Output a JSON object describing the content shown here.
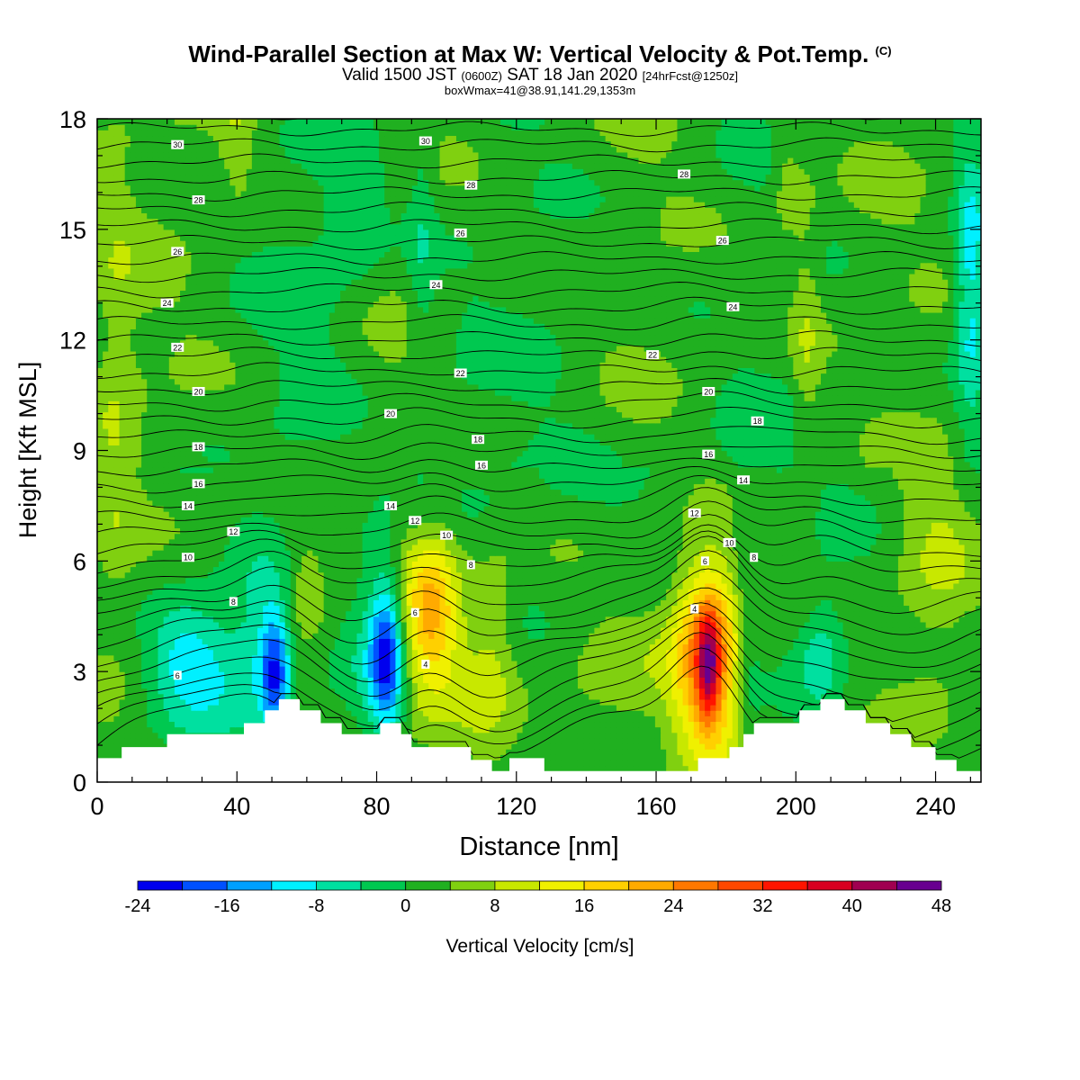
{
  "title": {
    "main": "Wind-Parallel Section at Max W: Vertical Velocity & Pot.Temp.",
    "copyright": "(C)",
    "valid_prefix": "Valid 1500 JST",
    "valid_utc": "(0600Z)",
    "valid_date": "SAT 18 Jan 2020",
    "forecast": "[24hrFcst@1250z]",
    "box_info": "boxWmax=41@38.91,141.29,1353m"
  },
  "chart_data": {
    "type": "heatmap",
    "xlabel": "Distance [nm]",
    "ylabel": "Height [Kft MSL]",
    "xlim": [
      0,
      253
    ],
    "ylim": [
      0,
      18
    ],
    "x_ticks": [
      0,
      40,
      80,
      120,
      160,
      200,
      240
    ],
    "y_ticks": [
      0,
      3,
      6,
      9,
      12,
      15,
      18
    ],
    "colorbar": {
      "label": "Vertical Velocity [cm/s]",
      "ticks": [
        -24,
        -16,
        -8,
        0,
        8,
        16,
        24,
        32,
        40,
        48
      ],
      "levels": [
        -24,
        -20,
        -16,
        -12,
        -8,
        -4,
        0,
        4,
        8,
        12,
        16,
        20,
        24,
        28,
        32,
        36,
        40,
        44,
        48
      ],
      "colors": [
        "#0000ee",
        "#0050ff",
        "#00a0ff",
        "#00f0ff",
        "#00e0a0",
        "#00c850",
        "#20b020",
        "#80d010",
        "#c8e800",
        "#f0f000",
        "#ffd000",
        "#ffaa00",
        "#ff7800",
        "#ff4800",
        "#ff1400",
        "#d80020",
        "#a00050",
        "#680090"
      ]
    },
    "background_velocity": 2,
    "velocity_features": [
      {
        "x": 95,
        "y": 4.5,
        "sx": 7,
        "sy": 2.0,
        "w": 14
      },
      {
        "x": 96,
        "y": 4.8,
        "sx": 4,
        "sy": 1.2,
        "w": 5
      },
      {
        "x": 83,
        "y": 3.5,
        "sx": 3.5,
        "sy": 1.5,
        "w": -24
      },
      {
        "x": 77,
        "y": 4.0,
        "sx": 5,
        "sy": 2.0,
        "w": -4
      },
      {
        "x": 51,
        "y": 3.0,
        "sx": 3,
        "sy": 1.2,
        "w": -20
      },
      {
        "x": 46,
        "y": 4.0,
        "sx": 5,
        "sy": 2.0,
        "w": -5
      },
      {
        "x": 33,
        "y": 3.2,
        "sx": 10,
        "sy": 1.3,
        "w": -10
      },
      {
        "x": 24,
        "y": 3.5,
        "sx": 6,
        "sy": 1.0,
        "w": -6
      },
      {
        "x": 175,
        "y": 3.4,
        "sx": 7,
        "sy": 1.9,
        "w": 26
      },
      {
        "x": 175,
        "y": 3.2,
        "sx": 2.2,
        "sy": 1.0,
        "w": 20
      },
      {
        "x": 186,
        "y": 3.6,
        "sx": 3,
        "sy": 2.5,
        "w": -6
      },
      {
        "x": 207,
        "y": 3.6,
        "sx": 5,
        "sy": 1.2,
        "w": -9
      },
      {
        "x": 250,
        "y": 13.5,
        "sx": 3,
        "sy": 2.5,
        "w": -12
      },
      {
        "x": 74,
        "y": 15.5,
        "sx": 7,
        "sy": 1.5,
        "w": -6
      },
      {
        "x": 93,
        "y": 14.5,
        "sx": 3,
        "sy": 4,
        "w": -5
      },
      {
        "x": 61,
        "y": 12.0,
        "sx": 8,
        "sy": 3,
        "w": -2
      },
      {
        "x": 105,
        "y": 11.8,
        "sx": 6,
        "sy": 1.5,
        "w": -2
      },
      {
        "x": 60,
        "y": 5.3,
        "sx": 4,
        "sy": 1.2,
        "w": 6
      },
      {
        "x": 114,
        "y": 4.3,
        "sx": 4,
        "sy": 1.5,
        "w": 5
      },
      {
        "x": 148,
        "y": 2.7,
        "sx": 10,
        "sy": 1.2,
        "w": 4
      },
      {
        "x": 240,
        "y": 6.0,
        "sx": 8,
        "sy": 2.5,
        "w": 6
      },
      {
        "x": 5,
        "y": 10.0,
        "sx": 5,
        "sy": 5,
        "w": 5
      },
      {
        "x": 40,
        "y": 17.5,
        "sx": 4,
        "sy": 1.5,
        "w": 5
      },
      {
        "x": 197,
        "y": 16.5,
        "sx": 3,
        "sy": 1.5,
        "w": 5
      },
      {
        "x": 203,
        "y": 12.0,
        "sx": 3,
        "sy": 4,
        "w": 5
      },
      {
        "x": 110,
        "y": 2.0,
        "sx": 6,
        "sy": 1.5,
        "w": 4
      },
      {
        "x": 110,
        "y": 8.0,
        "sx": 30,
        "sy": 1.2,
        "w": -2
      },
      {
        "x": 200,
        "y": 8.5,
        "sx": 25,
        "sy": 1.5,
        "w": -2
      }
    ],
    "terrain": [
      [
        0,
        0.65
      ],
      [
        7,
        0.65
      ],
      [
        7,
        0.95
      ],
      [
        20,
        0.95
      ],
      [
        20,
        1.3
      ],
      [
        42,
        1.3
      ],
      [
        42,
        1.6
      ],
      [
        48,
        1.6
      ],
      [
        48,
        1.95
      ],
      [
        52,
        1.95
      ],
      [
        52,
        2.25
      ],
      [
        58,
        2.25
      ],
      [
        58,
        1.95
      ],
      [
        64,
        1.95
      ],
      [
        64,
        1.6
      ],
      [
        70,
        1.6
      ],
      [
        70,
        1.3
      ],
      [
        74,
        1.3
      ],
      [
        74,
        1.3
      ],
      [
        81,
        1.3
      ],
      [
        81,
        1.6
      ],
      [
        87,
        1.6
      ],
      [
        87,
        1.3
      ],
      [
        90,
        1.3
      ],
      [
        90,
        0.95
      ],
      [
        107,
        0.95
      ],
      [
        107,
        0.6
      ],
      [
        113,
        0.6
      ],
      [
        113,
        0.3
      ],
      [
        118,
        0.3
      ],
      [
        118,
        0.65
      ],
      [
        128,
        0.65
      ],
      [
        128,
        0.3
      ],
      [
        172,
        0.3
      ],
      [
        172,
        0.65
      ],
      [
        181,
        0.65
      ],
      [
        181,
        0.95
      ],
      [
        185,
        0.95
      ],
      [
        185,
        1.3
      ],
      [
        188,
        1.3
      ],
      [
        188,
        1.6
      ],
      [
        201,
        1.6
      ],
      [
        201,
        1.95
      ],
      [
        207,
        1.95
      ],
      [
        207,
        2.25
      ],
      [
        214,
        2.25
      ],
      [
        214,
        1.95
      ],
      [
        220,
        1.95
      ],
      [
        220,
        1.6
      ],
      [
        227,
        1.6
      ],
      [
        227,
        1.3
      ],
      [
        233,
        1.3
      ],
      [
        233,
        0.95
      ],
      [
        240,
        0.95
      ],
      [
        240,
        0.6
      ],
      [
        246,
        0.6
      ],
      [
        246,
        0.3
      ],
      [
        253,
        0.3
      ]
    ],
    "theta_labels": [
      {
        "x": 23,
        "y": 17.3,
        "t": "30"
      },
      {
        "x": 94,
        "y": 17.4,
        "t": "30"
      },
      {
        "x": 29,
        "y": 15.8,
        "t": "28"
      },
      {
        "x": 107,
        "y": 16.2,
        "t": "28"
      },
      {
        "x": 168,
        "y": 16.5,
        "t": "28"
      },
      {
        "x": 23,
        "y": 14.4,
        "t": "26"
      },
      {
        "x": 104,
        "y": 14.9,
        "t": "26"
      },
      {
        "x": 179,
        "y": 14.7,
        "t": "26"
      },
      {
        "x": 20,
        "y": 13.0,
        "t": "24"
      },
      {
        "x": 97,
        "y": 13.5,
        "t": "24"
      },
      {
        "x": 182,
        "y": 12.9,
        "t": "24"
      },
      {
        "x": 23,
        "y": 11.8,
        "t": "22"
      },
      {
        "x": 104,
        "y": 11.1,
        "t": "22"
      },
      {
        "x": 159,
        "y": 11.6,
        "t": "22"
      },
      {
        "x": 29,
        "y": 10.6,
        "t": "20"
      },
      {
        "x": 84,
        "y": 10.0,
        "t": "20"
      },
      {
        "x": 175,
        "y": 10.6,
        "t": "20"
      },
      {
        "x": 29,
        "y": 9.1,
        "t": "18"
      },
      {
        "x": 109,
        "y": 9.3,
        "t": "18"
      },
      {
        "x": 189,
        "y": 9.8,
        "t": "18"
      },
      {
        "x": 29,
        "y": 8.1,
        "t": "16"
      },
      {
        "x": 110,
        "y": 8.6,
        "t": "16"
      },
      {
        "x": 175,
        "y": 8.9,
        "t": "16"
      },
      {
        "x": 26,
        "y": 7.5,
        "t": "14"
      },
      {
        "x": 84,
        "y": 7.5,
        "t": "14"
      },
      {
        "x": 185,
        "y": 8.2,
        "t": "14"
      },
      {
        "x": 39,
        "y": 6.8,
        "t": "12"
      },
      {
        "x": 91,
        "y": 7.1,
        "t": "12"
      },
      {
        "x": 171,
        "y": 7.3,
        "t": "12"
      },
      {
        "x": 26,
        "y": 6.1,
        "t": "10"
      },
      {
        "x": 100,
        "y": 6.7,
        "t": "10"
      },
      {
        "x": 181,
        "y": 6.5,
        "t": "10"
      },
      {
        "x": 39,
        "y": 4.9,
        "t": "8"
      },
      {
        "x": 107,
        "y": 5.9,
        "t": "8"
      },
      {
        "x": 188,
        "y": 6.1,
        "t": "8"
      },
      {
        "x": 91,
        "y": 4.6,
        "t": "6"
      },
      {
        "x": 174,
        "y": 6.0,
        "t": "6"
      },
      {
        "x": 94,
        "y": 3.2,
        "t": "4"
      },
      {
        "x": 171,
        "y": 4.7,
        "t": "4"
      },
      {
        "x": 23,
        "y": 2.9,
        "t": "6"
      }
    ]
  }
}
